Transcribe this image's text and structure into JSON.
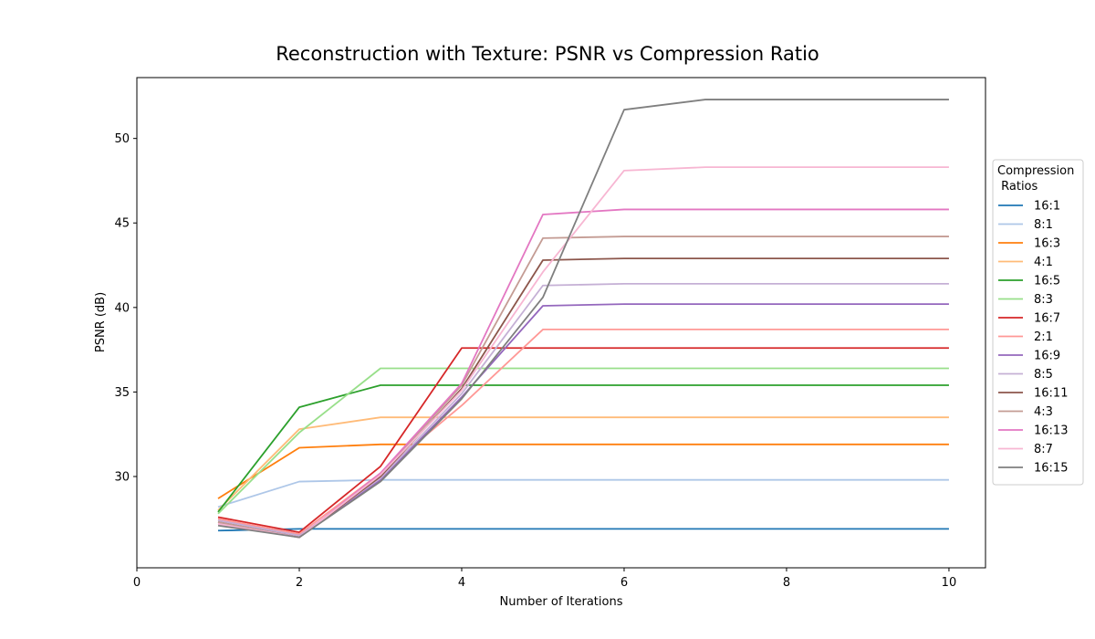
{
  "chart_data": {
    "type": "line",
    "title": "Reconstruction with Texture: PSNR vs Compression Ratio",
    "xlabel": "Number of Iterations",
    "ylabel": "PSNR (dB)",
    "xlim": [
      0,
      10.45
    ],
    "ylim": [
      24.6,
      53.6
    ],
    "xticks": [
      0,
      2,
      4,
      6,
      8,
      10
    ],
    "yticks": [
      30,
      35,
      40,
      45,
      50
    ],
    "grid": false,
    "legend": {
      "title_lines": [
        "Compression",
        " Ratios"
      ],
      "placement": "center-right outside"
    },
    "x": [
      1,
      2,
      3,
      4,
      5,
      6,
      7,
      8,
      9,
      10
    ],
    "series": [
      {
        "name": "16:1",
        "color": "#1f77b4",
        "values": [
          26.8,
          26.9,
          26.9,
          26.9,
          26.9,
          26.9,
          26.9,
          26.9,
          26.9,
          26.9
        ]
      },
      {
        "name": "8:1",
        "color": "#aec7e8",
        "values": [
          28.2,
          29.7,
          29.8,
          29.8,
          29.8,
          29.8,
          29.8,
          29.8,
          29.8,
          29.8
        ]
      },
      {
        "name": "16:3",
        "color": "#ff7f0e",
        "values": [
          28.7,
          31.7,
          31.9,
          31.9,
          31.9,
          31.9,
          31.9,
          31.9,
          31.9,
          31.9
        ]
      },
      {
        "name": "4:1",
        "color": "#ffbb78",
        "values": [
          28.0,
          32.8,
          33.5,
          33.5,
          33.5,
          33.5,
          33.5,
          33.5,
          33.5,
          33.5
        ]
      },
      {
        "name": "16:5",
        "color": "#2ca02c",
        "values": [
          27.9,
          34.1,
          35.4,
          35.4,
          35.4,
          35.4,
          35.4,
          35.4,
          35.4,
          35.4
        ]
      },
      {
        "name": "8:3",
        "color": "#98df8a",
        "values": [
          27.8,
          32.6,
          36.4,
          36.4,
          36.4,
          36.4,
          36.4,
          36.4,
          36.4,
          36.4
        ]
      },
      {
        "name": "16:7",
        "color": "#d62728",
        "values": [
          27.6,
          26.7,
          30.6,
          37.6,
          37.6,
          37.6,
          37.6,
          37.6,
          37.6,
          37.6
        ]
      },
      {
        "name": "2:1",
        "color": "#ff9896",
        "values": [
          27.5,
          26.6,
          30.2,
          34.2,
          38.7,
          38.7,
          38.7,
          38.7,
          38.7,
          38.7
        ]
      },
      {
        "name": "16:9",
        "color": "#9467bd",
        "values": [
          27.4,
          26.5,
          29.8,
          34.7,
          40.1,
          40.2,
          40.2,
          40.2,
          40.2,
          40.2
        ]
      },
      {
        "name": "8:5",
        "color": "#c5b0d5",
        "values": [
          27.4,
          26.5,
          29.9,
          34.9,
          41.3,
          41.4,
          41.4,
          41.4,
          41.4,
          41.4
        ]
      },
      {
        "name": "16:11",
        "color": "#8c564b",
        "values": [
          27.3,
          26.4,
          30.0,
          35.2,
          42.8,
          42.9,
          42.9,
          42.9,
          42.9,
          42.9
        ]
      },
      {
        "name": "4:3",
        "color": "#c49c94",
        "values": [
          27.3,
          26.4,
          30.1,
          35.4,
          44.1,
          44.2,
          44.2,
          44.2,
          44.2,
          44.2
        ]
      },
      {
        "name": "16:13",
        "color": "#e377c2",
        "values": [
          27.2,
          26.4,
          30.2,
          35.5,
          45.5,
          45.8,
          45.8,
          45.8,
          45.8,
          45.8
        ]
      },
      {
        "name": "8:7",
        "color": "#f7b6d2",
        "values": [
          27.2,
          26.4,
          30.1,
          35.1,
          42.1,
          48.1,
          48.3,
          48.3,
          48.3,
          48.3
        ]
      },
      {
        "name": "16:15",
        "color": "#7f7f7f",
        "values": [
          27.1,
          26.4,
          29.7,
          34.6,
          40.6,
          51.7,
          52.3,
          52.3,
          52.3,
          52.3
        ]
      }
    ]
  }
}
